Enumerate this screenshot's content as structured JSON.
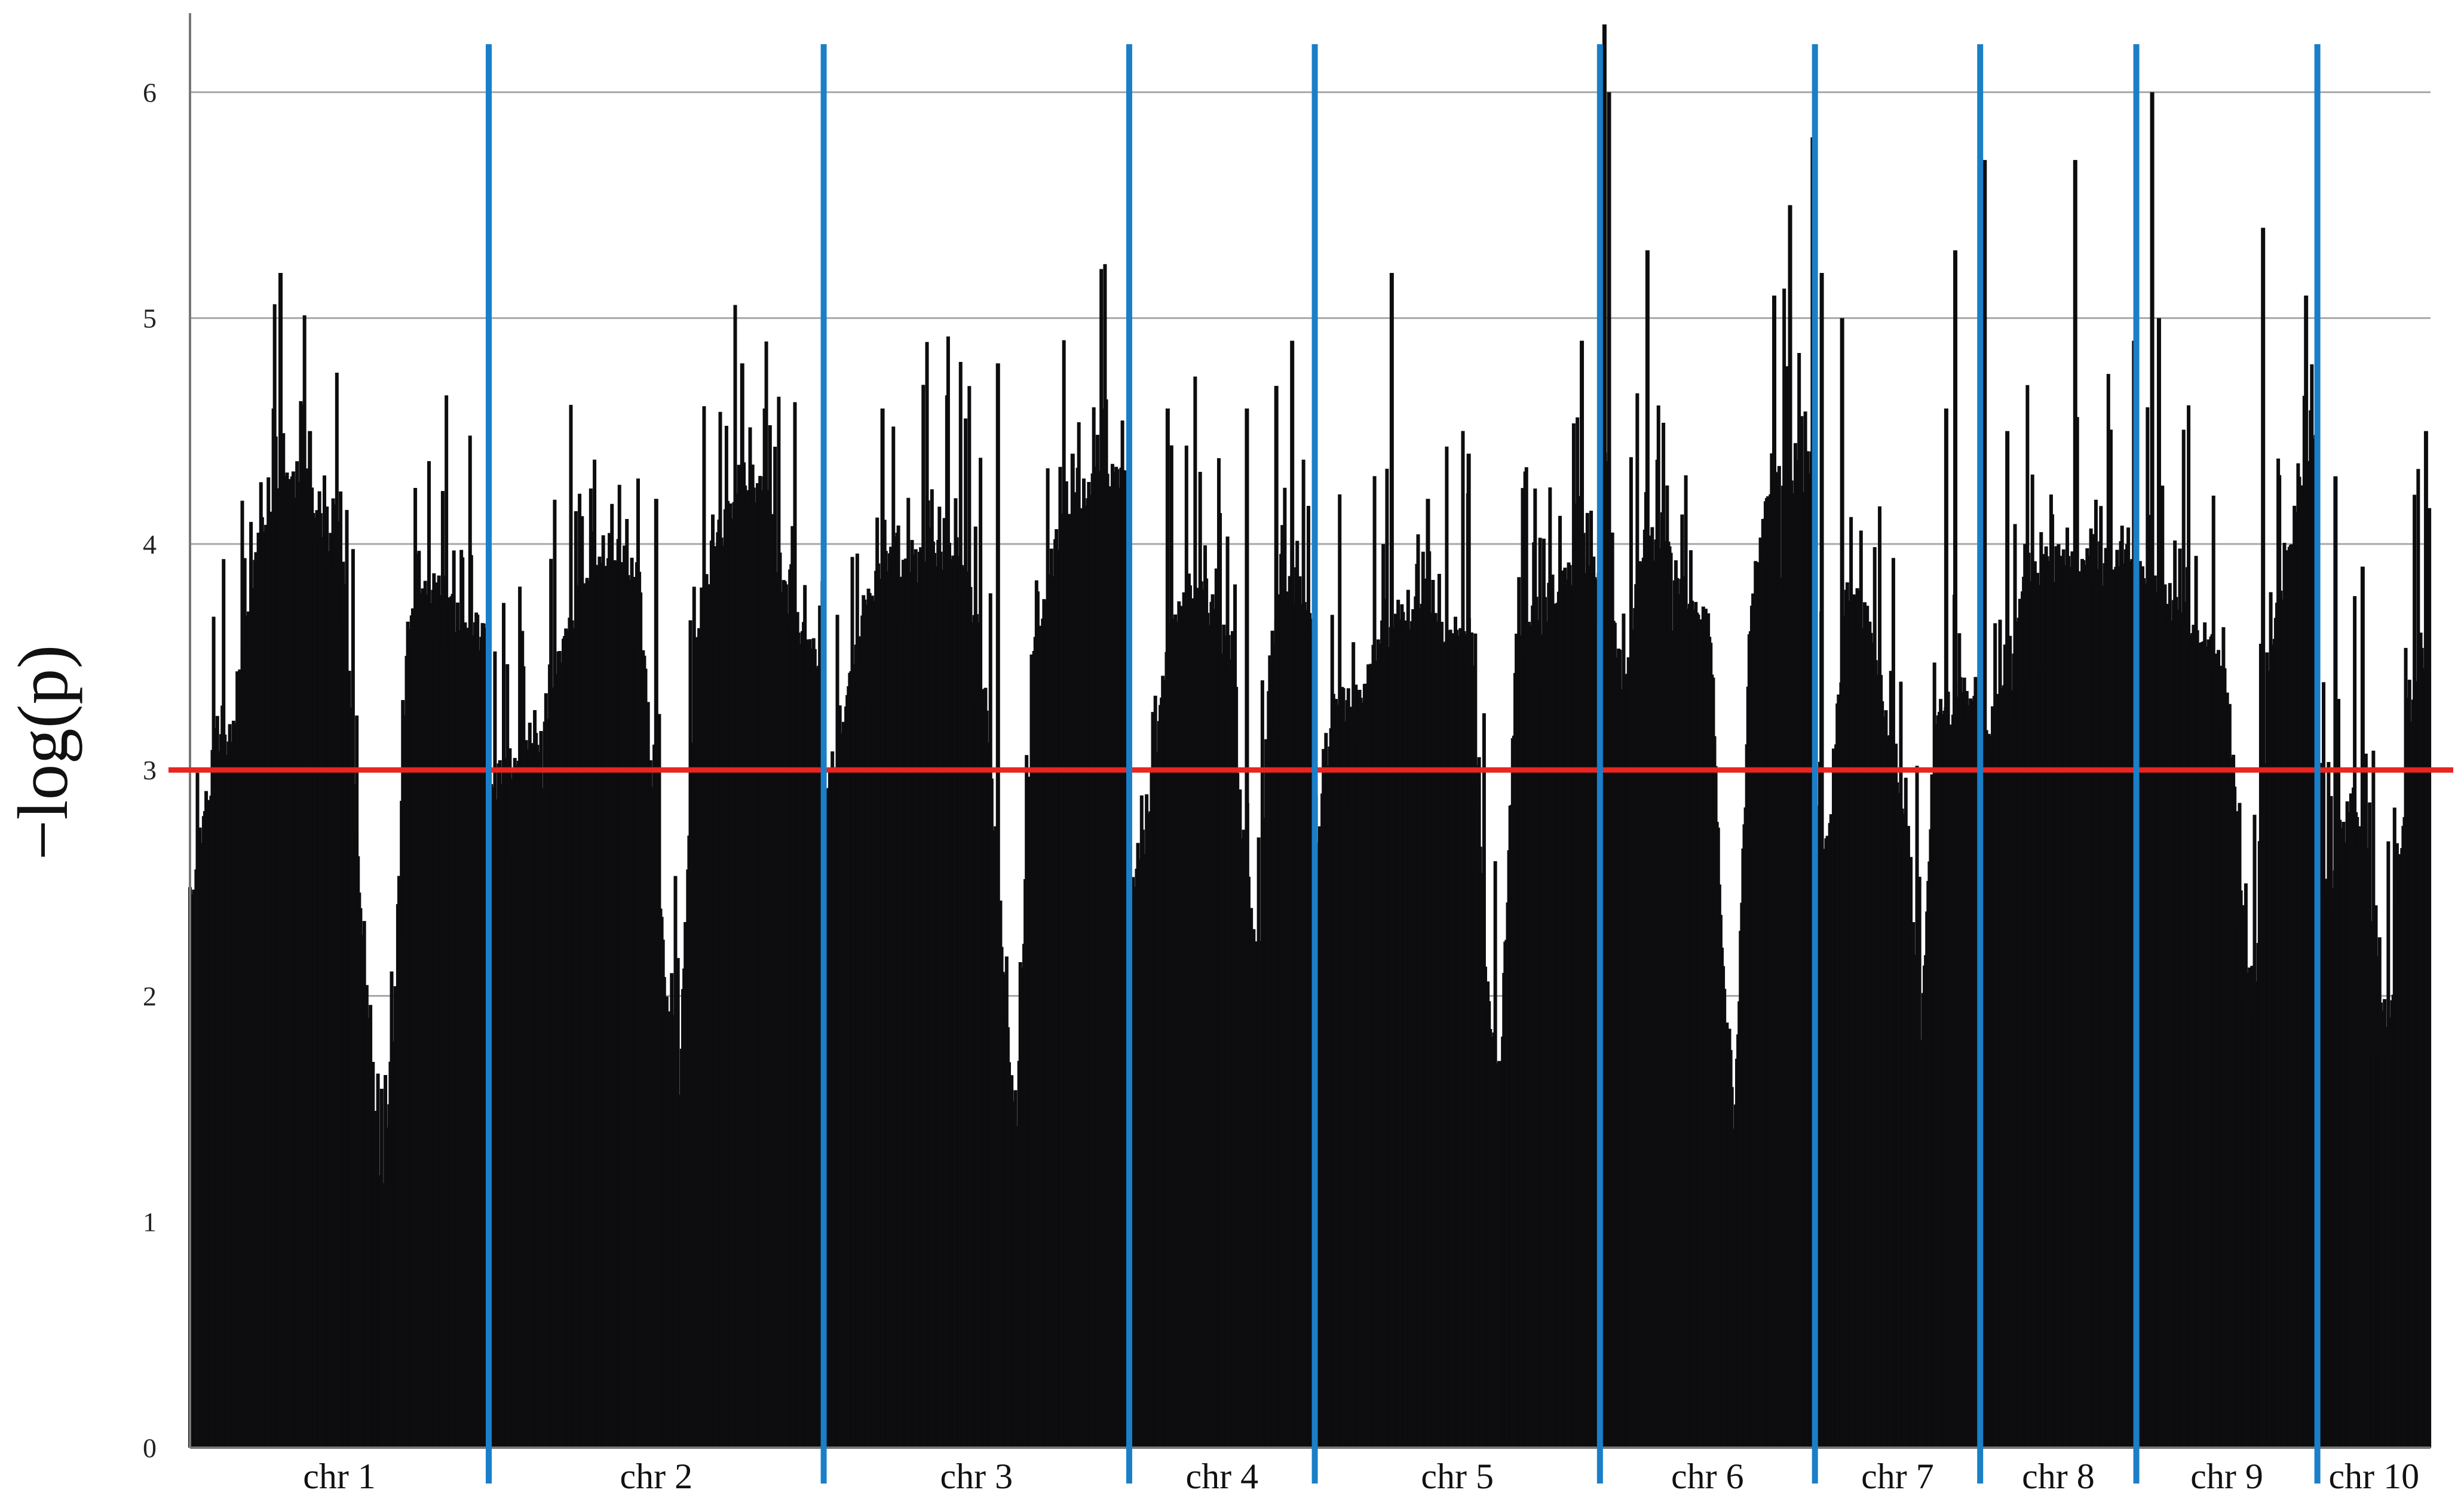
{
  "chart_data": {
    "type": "bar",
    "title": "",
    "xlabel": "",
    "ylabel": "−log(p)",
    "ylim": [
      0,
      6.35
    ],
    "yticks": [
      0,
      1,
      2,
      3,
      4,
      5,
      6
    ],
    "grid": "horizontal",
    "threshold": 3.0,
    "colors": {
      "bars": "#0d0d0f",
      "threshold_line": "#e8251f",
      "chromosome_separators": "#1a7fc8",
      "grid": "#a8a8a8",
      "axis": "#777777"
    },
    "chromosomes": [
      {
        "label": "chr 1",
        "start": 0.0,
        "end": 13.2,
        "profile": [
          [
            0,
            2.4
          ],
          [
            1,
            3.0
          ],
          [
            2,
            3.2
          ],
          [
            3,
            4.0
          ],
          [
            4,
            4.2
          ],
          [
            5,
            4.3
          ],
          [
            6,
            4.0
          ],
          [
            6.8,
            3.9
          ],
          [
            7.3,
            2.8
          ],
          [
            7.9,
            1.9
          ],
          [
            8.5,
            1.1
          ],
          [
            9.1,
            2.0
          ],
          [
            9.6,
            3.6
          ],
          [
            10.5,
            3.8
          ],
          [
            11.5,
            3.7
          ],
          [
            12.5,
            3.6
          ],
          [
            13.2,
            3.6
          ]
        ],
        "peaks": [
          [
            4.0,
            5.2
          ],
          [
            3.7,
            4.6
          ],
          [
            5.3,
            4.5
          ],
          [
            6.5,
            4.1
          ]
        ]
      },
      {
        "label": "chr 2",
        "start": 13.2,
        "end": 28.0,
        "profile": [
          [
            13.2,
            2.9
          ],
          [
            14.2,
            3.0
          ],
          [
            15.2,
            3.1
          ],
          [
            16.2,
            3.4
          ],
          [
            17.2,
            3.8
          ],
          [
            18.2,
            4.0
          ],
          [
            19.2,
            3.9
          ],
          [
            20.0,
            3.6
          ],
          [
            21.0,
            2.0
          ],
          [
            21.6,
            1.5
          ],
          [
            22.4,
            3.6
          ],
          [
            23.4,
            4.0
          ],
          [
            24.4,
            4.3
          ],
          [
            25.4,
            4.2
          ],
          [
            26.4,
            3.7
          ],
          [
            27.4,
            3.5
          ],
          [
            28.0,
            3.5
          ]
        ],
        "peaks": [
          [
            13.2,
            4.7
          ],
          [
            20.6,
            4.2
          ],
          [
            24.4,
            4.8
          ],
          [
            25.4,
            4.6
          ]
        ]
      },
      {
        "label": "chr 3",
        "start": 28.0,
        "end": 41.5,
        "profile": [
          [
            28.0,
            2.8
          ],
          [
            29.0,
            3.3
          ],
          [
            30.0,
            3.8
          ],
          [
            31.0,
            3.9
          ],
          [
            32.0,
            3.9
          ],
          [
            33.0,
            3.9
          ],
          [
            34.0,
            4.0
          ],
          [
            35.0,
            3.5
          ],
          [
            36.0,
            2.0
          ],
          [
            36.5,
            1.3
          ],
          [
            37.3,
            3.5
          ],
          [
            38.3,
            4.0
          ],
          [
            39.3,
            4.2
          ],
          [
            40.3,
            4.3
          ],
          [
            41.5,
            4.3
          ]
        ],
        "peaks": [
          [
            35.7,
            4.8
          ],
          [
            30.6,
            4.6
          ],
          [
            40.4,
            4.6
          ],
          [
            39.0,
            4.4
          ]
        ]
      },
      {
        "label": "chr 4",
        "start": 41.5,
        "end": 49.7,
        "profile": [
          [
            41.5,
            2.5
          ],
          [
            42.3,
            2.7
          ],
          [
            43.2,
            3.6
          ],
          [
            44.2,
            3.8
          ],
          [
            45.1,
            3.7
          ],
          [
            45.9,
            3.5
          ],
          [
            46.6,
            2.6
          ],
          [
            47.2,
            2.1
          ],
          [
            47.8,
            3.6
          ],
          [
            48.7,
            3.8
          ],
          [
            49.7,
            3.6
          ]
        ],
        "peaks": [
          [
            43.2,
            4.6
          ],
          [
            48.7,
            4.9
          ],
          [
            46.7,
            4.6
          ],
          [
            48.0,
            4.7
          ]
        ]
      },
      {
        "label": "chr 5",
        "start": 49.7,
        "end": 62.3,
        "profile": [
          [
            49.7,
            2.6
          ],
          [
            50.7,
            3.3
          ],
          [
            51.7,
            3.3
          ],
          [
            52.7,
            3.6
          ],
          [
            53.7,
            3.7
          ],
          [
            54.7,
            3.7
          ],
          [
            55.7,
            3.6
          ],
          [
            56.7,
            3.5
          ],
          [
            57.3,
            2.0
          ],
          [
            57.9,
            1.6
          ],
          [
            58.6,
            3.5
          ],
          [
            59.6,
            3.7
          ],
          [
            60.6,
            3.8
          ],
          [
            61.6,
            3.9
          ],
          [
            62.3,
            3.9
          ]
        ],
        "peaks": [
          [
            53.1,
            5.2
          ],
          [
            61.5,
            4.9
          ],
          [
            56.5,
            4.4
          ],
          [
            54.7,
            4.2
          ]
        ]
      },
      {
        "label": "chr 6",
        "start": 62.3,
        "end": 71.8,
        "profile": [
          [
            62.3,
            5.0
          ],
          [
            62.8,
            3.8
          ],
          [
            63.4,
            3.3
          ],
          [
            64.2,
            4.0
          ],
          [
            65.2,
            4.0
          ],
          [
            66.2,
            3.7
          ],
          [
            67.2,
            3.6
          ],
          [
            67.8,
            2.0
          ],
          [
            68.3,
            1.5
          ],
          [
            69.0,
            3.8
          ],
          [
            70.0,
            4.3
          ],
          [
            70.8,
            4.2
          ],
          [
            71.8,
            4.4
          ]
        ],
        "peaks": [
          [
            62.5,
            6.3
          ],
          [
            62.7,
            6.0
          ],
          [
            64.4,
            5.3
          ],
          [
            70.7,
            5.5
          ],
          [
            71.7,
            5.8
          ],
          [
            70.0,
            5.1
          ]
        ]
      },
      {
        "label": "chr 7",
        "start": 71.8,
        "end": 79.1,
        "profile": [
          [
            71.8,
            2.8
          ],
          [
            72.4,
            2.6
          ],
          [
            73.2,
            3.8
          ],
          [
            74.0,
            3.7
          ],
          [
            75.0,
            3.2
          ],
          [
            75.8,
            2.7
          ],
          [
            76.5,
            1.8
          ],
          [
            77.1,
            3.2
          ],
          [
            78.1,
            3.3
          ],
          [
            79.1,
            3.4
          ]
        ],
        "peaks": [
          [
            72.1,
            5.2
          ],
          [
            73.0,
            5.0
          ],
          [
            78.0,
            5.3
          ],
          [
            77.6,
            4.6
          ]
        ]
      },
      {
        "label": "chr 8",
        "start": 79.1,
        "end": 86.0,
        "profile": [
          [
            79.1,
            3.0
          ],
          [
            80.1,
            3.4
          ],
          [
            81.1,
            3.8
          ],
          [
            82.1,
            3.9
          ],
          [
            83.1,
            3.9
          ],
          [
            84.1,
            3.9
          ],
          [
            85.1,
            3.9
          ],
          [
            86.0,
            3.9
          ]
        ],
        "peaks": [
          [
            79.3,
            5.7
          ],
          [
            83.3,
            5.7
          ],
          [
            80.3,
            4.5
          ],
          [
            85.9,
            4.9
          ]
        ]
      },
      {
        "label": "chr 9",
        "start": 86.0,
        "end": 94.0,
        "profile": [
          [
            86.0,
            3.9
          ],
          [
            87.0,
            3.8
          ],
          [
            88.0,
            3.7
          ],
          [
            89.0,
            3.6
          ],
          [
            90.0,
            3.4
          ],
          [
            90.6,
            2.5
          ],
          [
            91.2,
            1.8
          ],
          [
            91.8,
            3.4
          ],
          [
            92.8,
            4.0
          ],
          [
            94.0,
            4.6
          ]
        ],
        "peaks": [
          [
            86.7,
            6.0
          ],
          [
            87.0,
            5.0
          ],
          [
            91.6,
            5.4
          ],
          [
            93.5,
            5.1
          ]
        ]
      },
      {
        "label": "chr 10",
        "start": 94.0,
        "end": 99.0,
        "profile": [
          [
            94.0,
            2.8
          ],
          [
            94.6,
            2.4
          ],
          [
            95.5,
            2.9
          ],
          [
            96.5,
            2.3
          ],
          [
            97.1,
            1.7
          ],
          [
            97.8,
            2.8
          ],
          [
            98.5,
            3.5
          ],
          [
            99.0,
            3.6
          ]
        ],
        "peaks": [
          [
            94.8,
            4.3
          ],
          [
            96.0,
            3.9
          ],
          [
            98.8,
            4.5
          ]
        ]
      }
    ]
  }
}
